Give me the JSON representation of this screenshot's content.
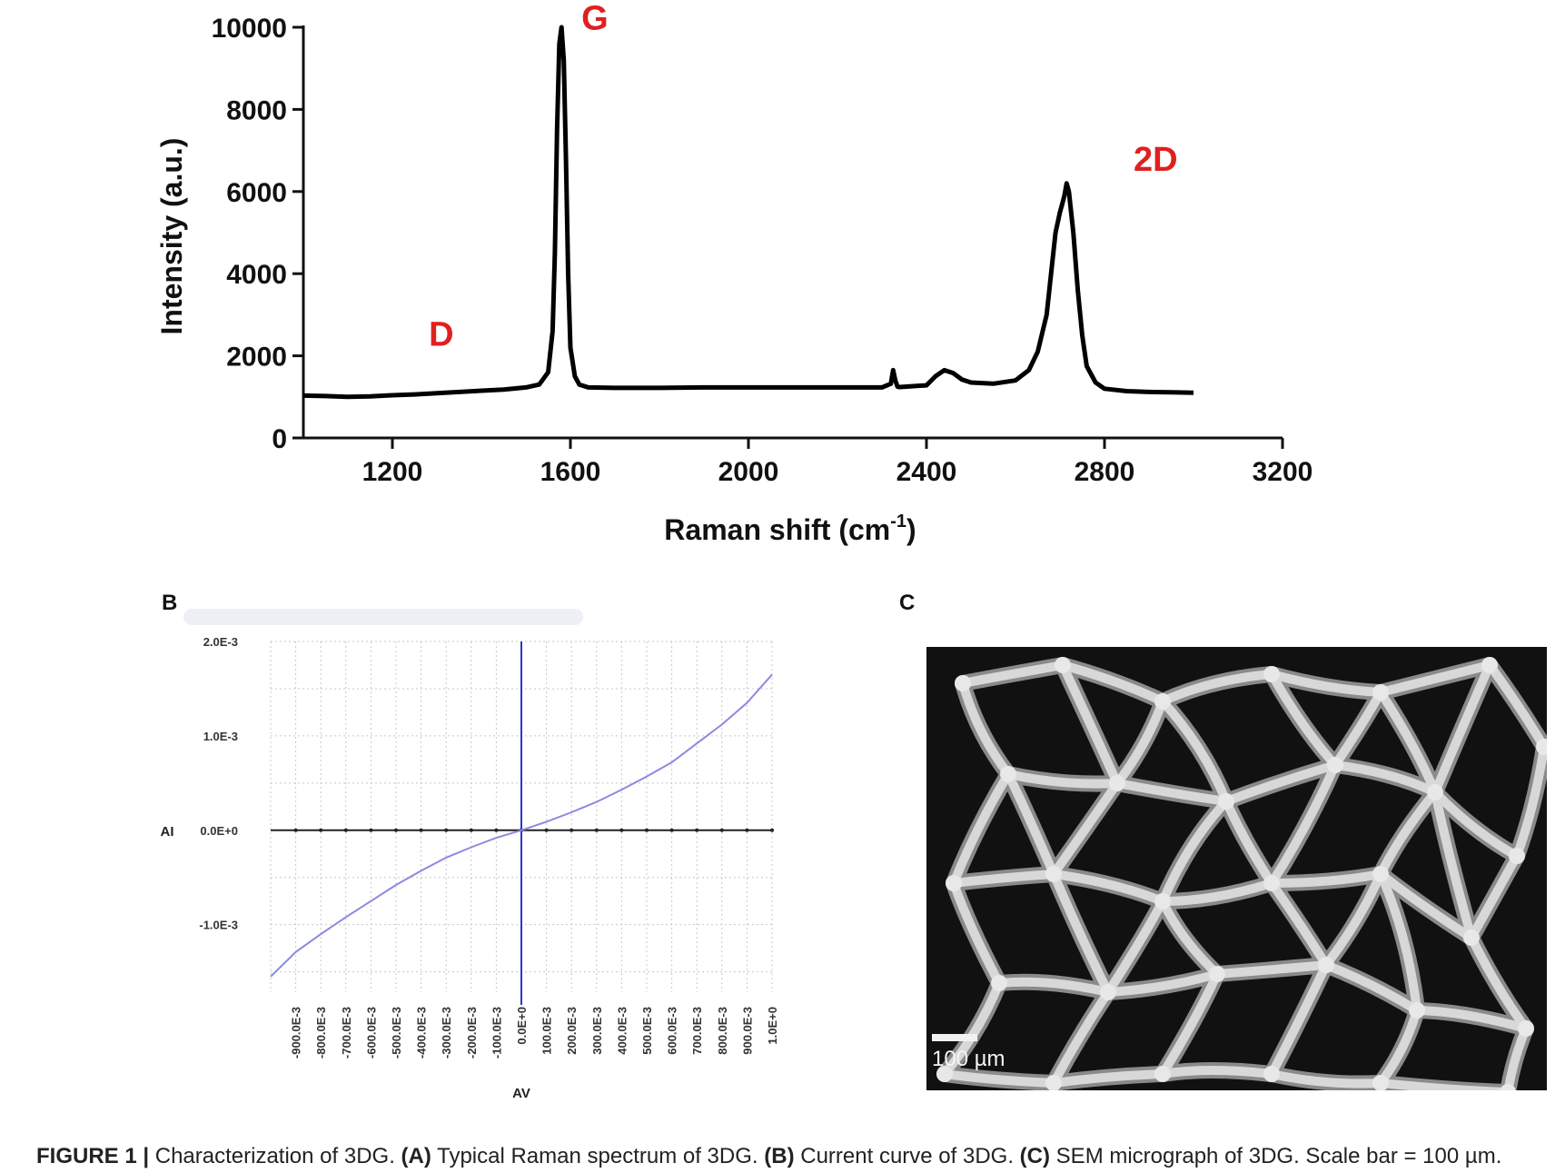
{
  "figure": {
    "caption": {
      "figure_label": "FIGURE 1 |",
      "intro": "Characterization of 3DG.",
      "a_label": "(A)",
      "a_text": "Typical Raman spectrum of 3DG.",
      "b_label": "(B)",
      "b_text": "Current curve of 3DG.",
      "c_label": "(C)",
      "c_text": "SEM micrograph of 3DG. Scale bar = 100 µm."
    },
    "panel_b_letter": "B",
    "panel_c_letter": "C",
    "sem": {
      "scale_label": "100 µm",
      "colors": {
        "background": "#111111",
        "struts": "#d8d8d8"
      }
    }
  },
  "chart_data": [
    {
      "panel": "A",
      "type": "line",
      "title": "",
      "xlabel": "Raman shift (cm-1)",
      "xlabel_main": "Raman shift (cm",
      "xlabel_sup": "-1",
      "xlabel_close": ")",
      "ylabel": "Intensity (a.u.)",
      "xlim": [
        1000,
        3200
      ],
      "ylim": [
        0,
        10000
      ],
      "xticks": [
        1200,
        1600,
        2000,
        2400,
        2800,
        3200
      ],
      "yticks": [
        0,
        2000,
        4000,
        6000,
        8000,
        10000
      ],
      "grid": false,
      "line_color": "#000000",
      "annotation_color": "#e02020",
      "annotations": [
        {
          "text": "D",
          "x": 1310,
          "y": 2250
        },
        {
          "text": "G",
          "x": 1655,
          "y": 9950
        },
        {
          "text": "2D",
          "x": 2915,
          "y": 6500
        }
      ],
      "series": [
        {
          "x": [
            1000,
            1050,
            1100,
            1150,
            1200,
            1250,
            1300,
            1350,
            1400,
            1450,
            1500,
            1530,
            1550,
            1560,
            1565,
            1570,
            1575,
            1580,
            1585,
            1590,
            1595,
            1600,
            1610,
            1620,
            1640,
            1700,
            1800,
            1900,
            2000,
            2100,
            2200,
            2300,
            2320,
            2325,
            2330,
            2335,
            2340,
            2400,
            2420,
            2440,
            2460,
            2480,
            2500,
            2550,
            2600,
            2630,
            2650,
            2670,
            2680,
            2690,
            2700,
            2705,
            2710,
            2715,
            2720,
            2730,
            2740,
            2750,
            2760,
            2780,
            2800,
            2850,
            2900,
            2950,
            3000
          ],
          "y": [
            1030,
            1020,
            1000,
            1010,
            1040,
            1060,
            1090,
            1120,
            1150,
            1180,
            1230,
            1300,
            1600,
            2600,
            4500,
            7500,
            9600,
            10000,
            9200,
            6800,
            4000,
            2200,
            1500,
            1300,
            1230,
            1220,
            1220,
            1230,
            1230,
            1230,
            1230,
            1230,
            1320,
            1650,
            1400,
            1250,
            1240,
            1280,
            1500,
            1650,
            1580,
            1420,
            1350,
            1320,
            1400,
            1650,
            2100,
            3000,
            4000,
            5000,
            5500,
            5700,
            5900,
            6200,
            6000,
            5000,
            3600,
            2500,
            1750,
            1350,
            1200,
            1140,
            1120,
            1110,
            1100
          ]
        }
      ]
    },
    {
      "panel": "B",
      "type": "line",
      "title": "",
      "xlabel": "AV",
      "ylabel": "AI",
      "xlim": [
        -1000,
        1000
      ],
      "ylim": [
        -0.0016,
        0.002
      ],
      "xtick_values": [
        -900,
        -800,
        -700,
        -600,
        -500,
        -400,
        -300,
        -200,
        -100,
        0,
        100,
        200,
        300,
        400,
        500,
        600,
        700,
        800,
        900,
        1000
      ],
      "xtick_labels": [
        "-900.0E-3",
        "-800.0E-3",
        "-700.0E-3",
        "-600.0E-3",
        "-500.0E-3",
        "-400.0E-3",
        "-300.0E-3",
        "-200.0E-3",
        "-100.0E-3",
        "0.0E+0",
        "100.0E-3",
        "200.0E-3",
        "300.0E-3",
        "400.0E-3",
        "500.0E-3",
        "600.0E-3",
        "700.0E-3",
        "800.0E-3",
        "900.0E-3",
        "1.0E+0"
      ],
      "ytick_values": [
        -0.001,
        0,
        0.001,
        0.002
      ],
      "ytick_labels": [
        "-1.0E-3",
        "0.0E+0",
        "1.0E-3",
        "2.0E-3"
      ],
      "grid": true,
      "line_color": "#8a8ae0",
      "axis_color": "#3333cc",
      "series": [
        {
          "x": [
            -1000,
            -900,
            -800,
            -700,
            -600,
            -500,
            -400,
            -300,
            -200,
            -100,
            0,
            100,
            200,
            300,
            400,
            500,
            600,
            700,
            800,
            900,
            1000
          ],
          "y": [
            -0.00155,
            -0.00129,
            -0.0011,
            -0.00092,
            -0.00075,
            -0.00058,
            -0.00043,
            -0.00029,
            -0.00018,
            -8e-05,
            0,
            9e-05,
            0.00019,
            0.0003,
            0.00043,
            0.00057,
            0.00072,
            0.00092,
            0.00112,
            0.00135,
            0.00165
          ]
        }
      ]
    }
  ]
}
